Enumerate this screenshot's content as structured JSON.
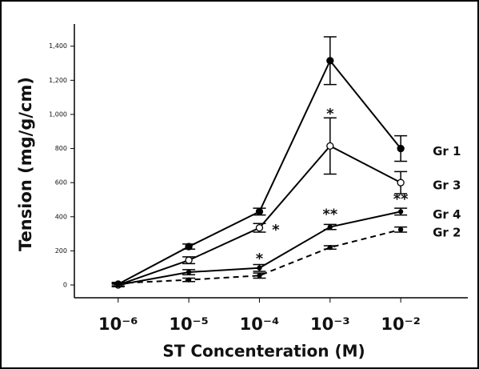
{
  "chart_data": {
    "type": "line",
    "y_label": "Tension (mg/g/cm)",
    "x_label": "ST Concenteration (M)",
    "log_x": true,
    "xlim": [
      2.4e-07,
      0.089
    ],
    "xticks": [
      {
        "value": 1e-06,
        "label": "10⁻⁶"
      },
      {
        "value": 1e-05,
        "label": "10⁻⁵"
      },
      {
        "value": 0.0001,
        "label": "10⁻⁴"
      },
      {
        "value": 0.001,
        "label": "10⁻³"
      },
      {
        "value": 0.01,
        "label": "10⁻²"
      }
    ],
    "ylim": [
      -75,
      1530
    ],
    "yticks": [
      0,
      200,
      400,
      600,
      800,
      {
        "value": 1000,
        "label": "1,000"
      },
      {
        "value": 1200,
        "label": "1,200"
      },
      {
        "value": 1400,
        "label": "1,400"
      }
    ],
    "x": [
      1e-06,
      1e-05,
      0.0001,
      0.001,
      0.01
    ],
    "series": [
      {
        "name": "Gr 1",
        "color": "#000000",
        "marker": "filled",
        "dashed": false,
        "values": [
          5,
          225,
          430,
          1315,
          800
        ],
        "errors": [
          10,
          15,
          20,
          140,
          75
        ]
      },
      {
        "name": "Gr 3",
        "color": "#000000",
        "marker": "open",
        "dashed": false,
        "values": [
          0,
          145,
          335,
          815,
          600
        ],
        "errors": [
          10,
          20,
          25,
          165,
          65
        ]
      },
      {
        "name": "Gr 4",
        "color": "#000000",
        "marker": "small",
        "dashed": false,
        "values": [
          0,
          75,
          100,
          340,
          430
        ],
        "errors": [
          10,
          15,
          20,
          15,
          20
        ]
      },
      {
        "name": "Gr 2",
        "color": "#000000",
        "marker": "small",
        "dashed": true,
        "values": [
          10,
          30,
          55,
          220,
          325
        ],
        "errors": [
          5,
          10,
          15,
          10,
          15
        ]
      }
    ],
    "annotations": [
      {
        "text": "*",
        "x": 0.0001,
        "y": 150
      },
      {
        "text": "*",
        "x": 0.00017,
        "y": 320
      },
      {
        "text": "*",
        "x": 0.001,
        "y": 1000
      },
      {
        "text": "**",
        "x": 0.001,
        "y": 410
      },
      {
        "text": "**",
        "x": 0.01,
        "y": 500
      }
    ]
  }
}
